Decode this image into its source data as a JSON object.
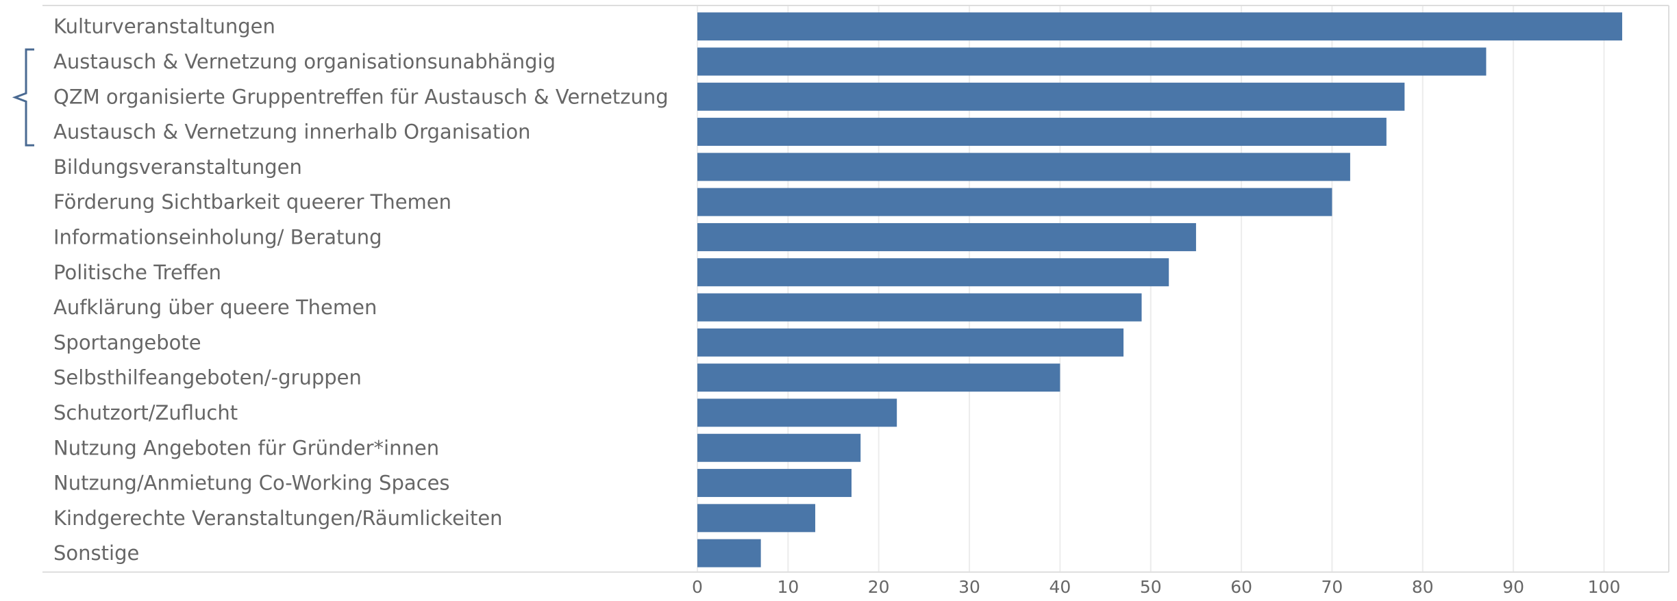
{
  "chart_data": {
    "type": "bar",
    "orientation": "horizontal",
    "categories": [
      "Kulturveranstaltungen",
      "Austausch & Vernetzung organisationsunabhängig",
      "QZM organisierte Gruppentreffen für Austausch & Vernetzung",
      "Austausch & Vernetzung innerhalb Organisation",
      "Bildungsveranstaltungen",
      "Förderung Sichtbarkeit queerer Themen",
      "Informationseinholung/ Beratung",
      "Politische Treffen",
      "Aufklärung über queere Themen",
      "Sportangebote",
      "Selbsthilfeangeboten/-gruppen",
      "Schutzort/Zuflucht",
      "Nutzung Angeboten für Gründer*innen",
      "Nutzung/Anmietung Co-Working Spaces",
      "Kindgerechte Veranstaltungen/Räumlickeiten",
      "Sonstige"
    ],
    "values": [
      102,
      87,
      78,
      76,
      72,
      70,
      55,
      52,
      49,
      47,
      40,
      22,
      18,
      17,
      13,
      7
    ],
    "xticks": [
      "0",
      "10",
      "20",
      "30",
      "40",
      "50",
      "60",
      "70",
      "80",
      "90",
      "100"
    ],
    "xlim": [
      0,
      107
    ],
    "grid": true,
    "bracket_group": [
      1,
      3
    ],
    "colors": {
      "bar": "#4a76a8",
      "grid": "#ececec",
      "label": "#666666",
      "bracket": "#4a6a92",
      "frame": "#dddddd"
    }
  }
}
